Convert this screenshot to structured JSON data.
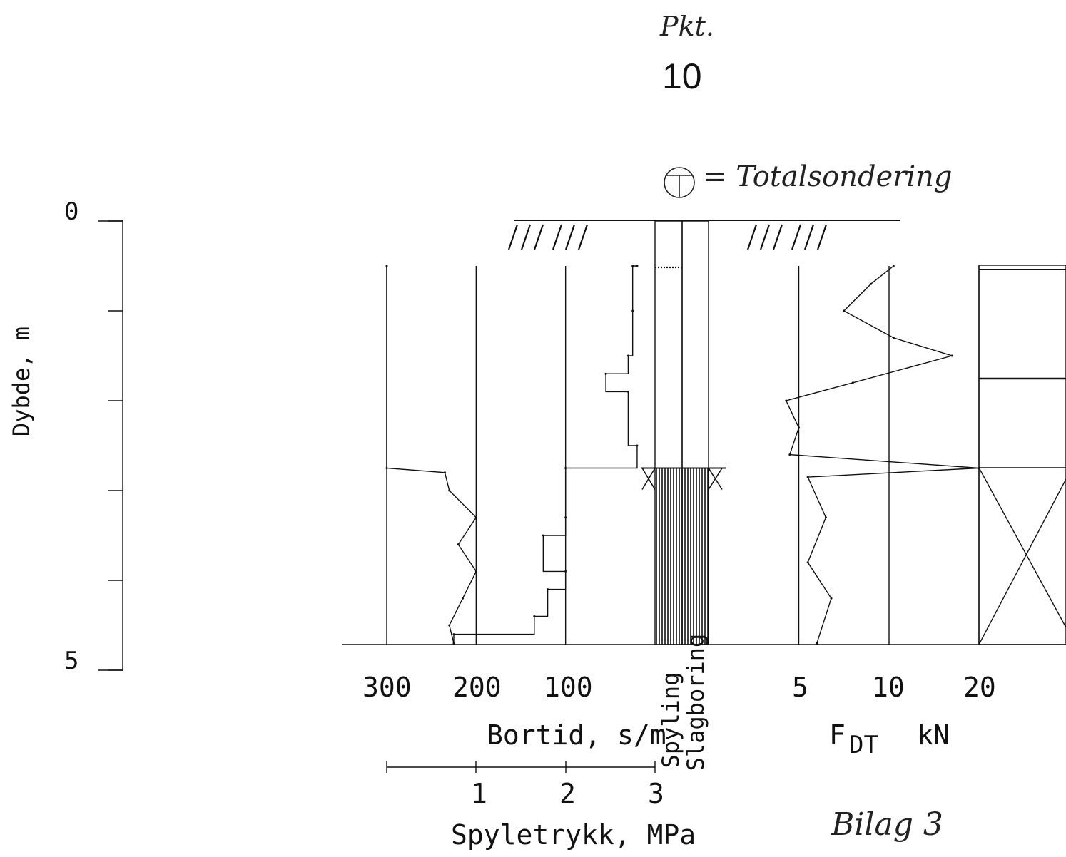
{
  "header": {
    "pkt_label": "Pkt.",
    "point_number": "10",
    "legend_text": "= Totalsondering",
    "legend_icon": "totalsondering-symbol-icon"
  },
  "footer": {
    "bilag": "Bilag 3"
  },
  "chart_data": {
    "type": "line",
    "title": "",
    "depth_axis": {
      "label": "Dybde, m",
      "tick_labels": [
        "0",
        "5"
      ],
      "range": [
        0,
        5
      ],
      "minor_ticks": [
        0,
        1,
        2,
        3,
        4,
        5
      ]
    },
    "bortid": {
      "label": "Bortid, s/m",
      "tick_labels": [
        "300",
        "200",
        "100"
      ],
      "range": [
        300,
        0
      ],
      "gridlines": [
        300,
        200,
        100
      ],
      "series": {
        "name": "",
        "points": [
          {
            "depth": 0.5,
            "value": 20
          },
          {
            "depth": 0.5,
            "value": 25
          },
          {
            "depth": 1.0,
            "value": 25
          },
          {
            "depth": 1.5,
            "value": 30
          },
          {
            "depth": 1.7,
            "value": 55
          },
          {
            "depth": 1.9,
            "value": 30
          },
          {
            "depth": 2.5,
            "value": 20
          },
          {
            "depth": 2.75,
            "value": 100
          },
          {
            "depth": 3.3,
            "value": 100
          },
          {
            "depth": 3.5,
            "value": 125
          },
          {
            "depth": 3.9,
            "value": 100
          },
          {
            "depth": 4.1,
            "value": 120
          },
          {
            "depth": 4.4,
            "value": 135
          },
          {
            "depth": 4.6,
            "value": 225
          },
          {
            "depth": 4.7,
            "value": 225
          }
        ]
      }
    },
    "spyletrykk": {
      "label": "Spyletrykk, MPa",
      "tick_labels": [
        "1",
        "2",
        "3"
      ],
      "range": [
        0,
        3
      ],
      "series": {
        "name": "",
        "points": [
          {
            "depth": 0.5,
            "value": 0.0
          },
          {
            "depth": 2.75,
            "value": 0.0
          },
          {
            "depth": 2.8,
            "value": 0.65
          },
          {
            "depth": 3.0,
            "value": 0.7
          },
          {
            "depth": 3.3,
            "value": 1.0
          },
          {
            "depth": 3.6,
            "value": 0.8
          },
          {
            "depth": 3.9,
            "value": 1.0
          },
          {
            "depth": 4.2,
            "value": 0.85
          },
          {
            "depth": 4.5,
            "value": 0.7
          },
          {
            "depth": 4.7,
            "value": 0.75
          }
        ]
      }
    },
    "columns": {
      "spyling_label": "Spyling",
      "slagboring_label": "Slagboring",
      "spyling_interval": [
        2.75,
        4.7
      ],
      "slagboring_interval": [
        2.75,
        4.7
      ]
    },
    "fdt": {
      "label_main": "F",
      "label_sub": "DT",
      "label_unit": "kN",
      "tick_labels": [
        "5",
        "10",
        "20"
      ],
      "gridlines": [
        5,
        10,
        20
      ],
      "series": {
        "name": "",
        "points": [
          {
            "depth": 0.5,
            "value": 10.5
          },
          {
            "depth": 0.7,
            "value": 9.0
          },
          {
            "depth": 1.0,
            "value": 7.5
          },
          {
            "depth": 1.3,
            "value": 10.5
          },
          {
            "depth": 1.5,
            "value": 17.0
          },
          {
            "depth": 1.8,
            "value": 8.0
          },
          {
            "depth": 2.0,
            "value": 4.3
          },
          {
            "depth": 2.3,
            "value": 5.0
          },
          {
            "depth": 2.6,
            "value": 4.5
          },
          {
            "depth": 2.75,
            "value": 20.0
          },
          {
            "depth": 2.85,
            "value": 5.5
          },
          {
            "depth": 3.3,
            "value": 6.5
          },
          {
            "depth": 3.8,
            "value": 5.5
          },
          {
            "depth": 4.2,
            "value": 6.8
          },
          {
            "depth": 4.7,
            "value": 6.0
          }
        ]
      }
    }
  }
}
